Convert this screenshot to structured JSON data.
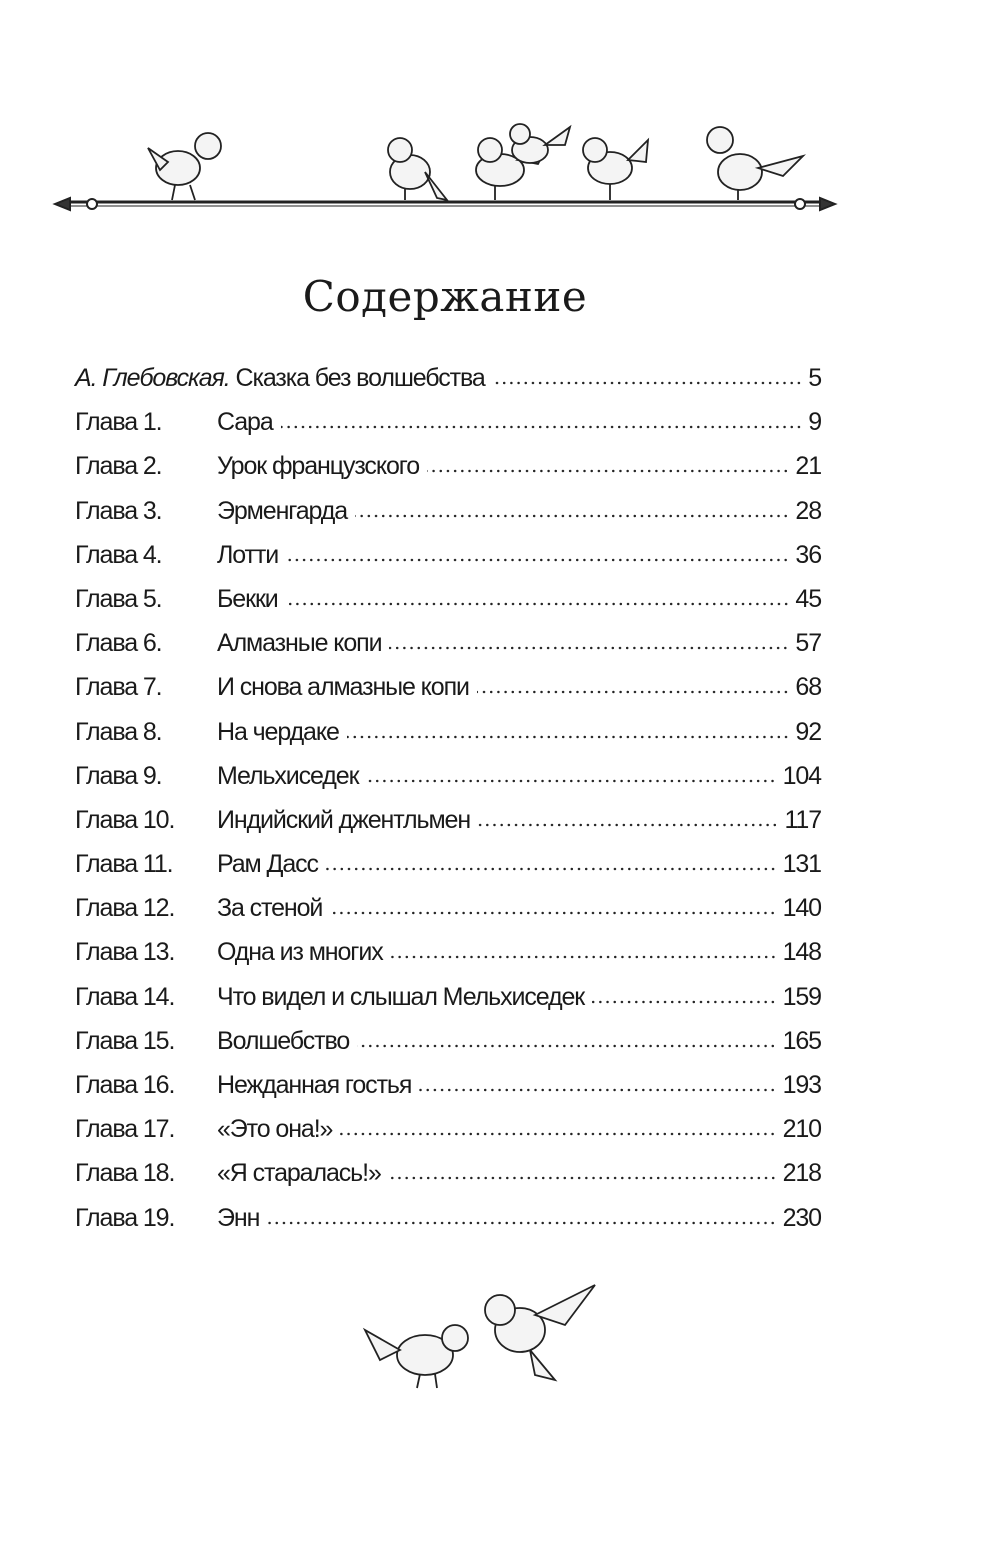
{
  "title": "Содержание",
  "entries": [
    {
      "label": "",
      "author": "А. Глебовская.",
      "title": "Сказка без волшебства",
      "page": "5"
    },
    {
      "label": "Глава 1.",
      "title": "Сара",
      "page": "9"
    },
    {
      "label": "Глава 2.",
      "title": "Урок французского",
      "page": "21"
    },
    {
      "label": "Глава 3.",
      "title": "Эрменгарда",
      "page": "28"
    },
    {
      "label": "Глава 4.",
      "title": "Лотти",
      "page": "36"
    },
    {
      "label": "Глава 5.",
      "title": "Бекки",
      "page": "45"
    },
    {
      "label": "Глава 6.",
      "title": "Алмазные копи",
      "page": "57"
    },
    {
      "label": "Глава 7.",
      "title": "И снова алмазные копи",
      "page": "68"
    },
    {
      "label": "Глава 8.",
      "title": "На чердаке",
      "page": "92"
    },
    {
      "label": "Глава 9.",
      "title": "Мельхиседек",
      "page": "104"
    },
    {
      "label": "Глава 10.",
      "title": "Индийский джентльмен",
      "page": "117"
    },
    {
      "label": "Глава 11.",
      "title": "Рам Дасс",
      "page": "131"
    },
    {
      "label": "Глава 12.",
      "title": "За стеной",
      "page": "140"
    },
    {
      "label": "Глава 13.",
      "title": "Одна из многих",
      "page": "148"
    },
    {
      "label": "Глава 14.",
      "title": "Что видел и слышал Мельхиседек",
      "page": "159"
    },
    {
      "label": "Глава 15.",
      "title": "Волшебство",
      "page": "165"
    },
    {
      "label": "Глава 16.",
      "title": "Нежданная гостья",
      "page": "193"
    },
    {
      "label": "Глава 17.",
      "title": "«Это она!»",
      "page": "210"
    },
    {
      "label": "Глава 18.",
      "title": "«Я старалась!»",
      "page": "218"
    },
    {
      "label": "Глава 19.",
      "title": "Энн",
      "page": "230"
    }
  ],
  "illustrations": {
    "top": "birds-on-rod",
    "bottom": "two-birds"
  }
}
